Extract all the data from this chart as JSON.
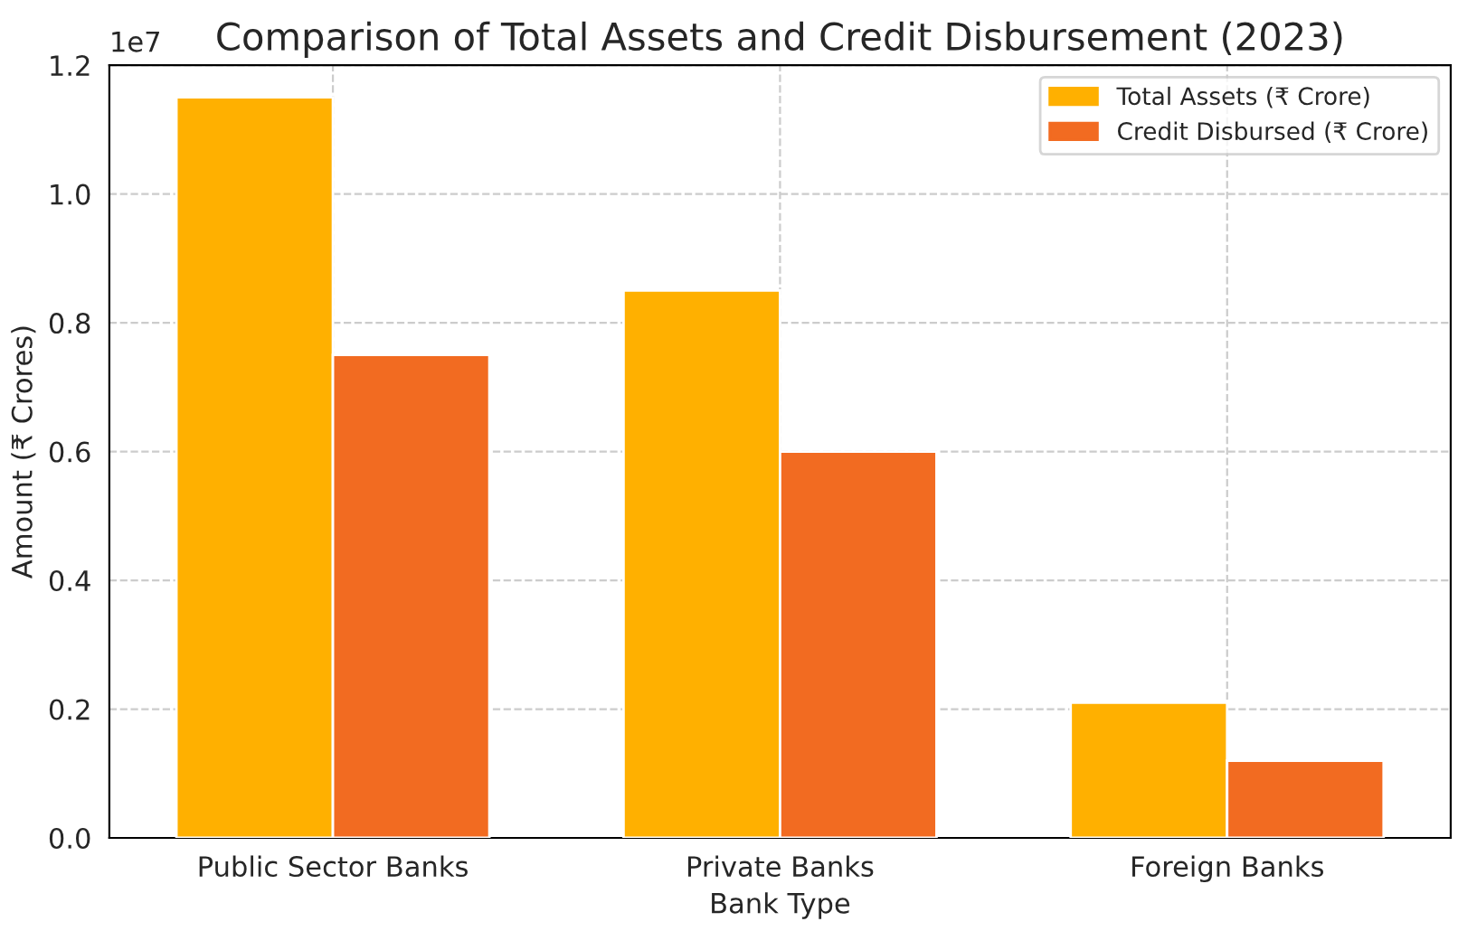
{
  "chart_data": {
    "type": "bar",
    "title": "Comparison of Total Assets and Credit Disbursement (2023)",
    "xlabel": "Bank Type",
    "ylabel": "Amount (₹ Crores)",
    "categories": [
      "Public Sector Banks",
      "Private Banks",
      "Foreign Banks"
    ],
    "series": [
      {
        "name": "Total Assets (₹ Crore)",
        "color": "#ffb000",
        "values": [
          1.15,
          0.85,
          0.21
        ]
      },
      {
        "name": "Credit Disbursed (₹ Crore)",
        "color": "#f26b21",
        "values": [
          0.75,
          0.6,
          0.12
        ]
      }
    ],
    "ylim": [
      0,
      1.2
    ],
    "yticks": [
      {
        "value": 0,
        "label": "0.0"
      },
      0.2,
      0.4,
      0.6,
      0.8,
      {
        "value": 1,
        "label": "1.0"
      },
      1.2
    ],
    "annotations": [
      "1e7"
    ],
    "grid": true,
    "legend": "top right"
  }
}
